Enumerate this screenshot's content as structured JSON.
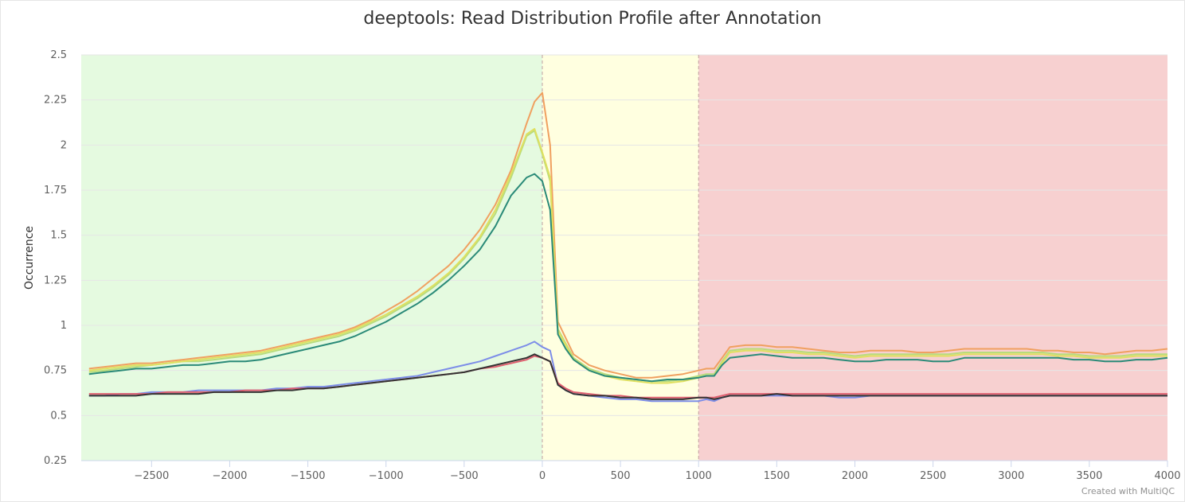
{
  "chart_data": {
    "type": "line",
    "title": "deeptools: Read Distribution Profile after Annotation",
    "xlabel": "",
    "ylabel": "Occurrence",
    "xlim": [
      -2950,
      4000
    ],
    "ylim": [
      0.25,
      2.5
    ],
    "x_ticks": [
      -2500,
      -2000,
      -1500,
      -1000,
      -500,
      0,
      500,
      1000,
      1500,
      2000,
      2500,
      3000,
      3500,
      4000
    ],
    "y_ticks": [
      0.25,
      0.5,
      0.75,
      1,
      1.25,
      1.5,
      1.75,
      2,
      2.25,
      2.5
    ],
    "y_tick_labels": [
      "0.25",
      "0.5",
      "0.75",
      "1",
      "1.25",
      "1.5",
      "1.75",
      "2",
      "2.25",
      "2.5"
    ],
    "grid": "horizontal",
    "legend": "none",
    "bands": [
      {
        "from": -2950,
        "to": 0,
        "color": "#e5fae0"
      },
      {
        "from": 0,
        "to": 1000,
        "color": "#ffffe0"
      },
      {
        "from": 1000,
        "to": 4000,
        "color": "#f7d0d0"
      }
    ],
    "plot_lines": [
      0,
      1000
    ],
    "series": [
      {
        "color": "#f0a060",
        "x": [
          -2900,
          -2800,
          -2700,
          -2600,
          -2500,
          -2400,
          -2300,
          -2200,
          -2100,
          -2000,
          -1900,
          -1800,
          -1700,
          -1600,
          -1500,
          -1400,
          -1300,
          -1200,
          -1100,
          -1000,
          -900,
          -800,
          -700,
          -600,
          -500,
          -400,
          -300,
          -200,
          -100,
          -50,
          0,
          50,
          100,
          150,
          200,
          300,
          400,
          500,
          600,
          700,
          800,
          900,
          1000,
          1050,
          1100,
          1150,
          1200,
          1300,
          1400,
          1500,
          1600,
          1700,
          1800,
          1900,
          2000,
          2100,
          2200,
          2300,
          2400,
          2500,
          2600,
          2700,
          2800,
          2900,
          3000,
          3100,
          3200,
          3300,
          3400,
          3500,
          3600,
          3700,
          3800,
          3900,
          4000
        ],
        "y": [
          0.76,
          0.77,
          0.78,
          0.79,
          0.79,
          0.8,
          0.81,
          0.82,
          0.83,
          0.84,
          0.85,
          0.86,
          0.88,
          0.9,
          0.92,
          0.94,
          0.96,
          0.99,
          1.03,
          1.08,
          1.13,
          1.19,
          1.26,
          1.33,
          1.42,
          1.53,
          1.67,
          1.86,
          2.12,
          2.24,
          2.29,
          2.0,
          1.02,
          0.93,
          0.84,
          0.78,
          0.75,
          0.73,
          0.71,
          0.71,
          0.72,
          0.73,
          0.75,
          0.76,
          0.76,
          0.82,
          0.88,
          0.89,
          0.89,
          0.88,
          0.88,
          0.87,
          0.86,
          0.85,
          0.85,
          0.86,
          0.86,
          0.86,
          0.85,
          0.85,
          0.86,
          0.87,
          0.87,
          0.87,
          0.87,
          0.87,
          0.86,
          0.86,
          0.85,
          0.85,
          0.84,
          0.85,
          0.86,
          0.86,
          0.87
        ]
      },
      {
        "color": "#b8dc7c",
        "x": [
          -2900,
          -2800,
          -2700,
          -2600,
          -2500,
          -2400,
          -2300,
          -2200,
          -2100,
          -2000,
          -1900,
          -1800,
          -1700,
          -1600,
          -1500,
          -1400,
          -1300,
          -1200,
          -1100,
          -1000,
          -900,
          -800,
          -700,
          -600,
          -500,
          -400,
          -300,
          -200,
          -100,
          -50,
          0,
          50,
          100,
          150,
          200,
          300,
          400,
          500,
          600,
          700,
          800,
          900,
          1000,
          1050,
          1100,
          1150,
          1200,
          1300,
          1400,
          1500,
          1600,
          1700,
          1800,
          1900,
          2000,
          2100,
          2200,
          2300,
          2400,
          2500,
          2600,
          2700,
          2800,
          2900,
          3000,
          3100,
          3200,
          3300,
          3400,
          3500,
          3600,
          3700,
          3800,
          3900,
          4000
        ],
        "y": [
          0.74,
          0.75,
          0.76,
          0.77,
          0.78,
          0.79,
          0.8,
          0.8,
          0.81,
          0.82,
          0.83,
          0.84,
          0.86,
          0.88,
          0.9,
          0.92,
          0.94,
          0.97,
          1.01,
          1.05,
          1.1,
          1.15,
          1.21,
          1.28,
          1.37,
          1.48,
          1.62,
          1.82,
          2.05,
          2.08,
          1.95,
          1.8,
          0.98,
          0.9,
          0.82,
          0.76,
          0.73,
          0.71,
          0.7,
          0.69,
          0.69,
          0.7,
          0.72,
          0.73,
          0.73,
          0.8,
          0.86,
          0.87,
          0.87,
          0.86,
          0.86,
          0.85,
          0.85,
          0.84,
          0.83,
          0.84,
          0.84,
          0.84,
          0.84,
          0.84,
          0.84,
          0.85,
          0.85,
          0.85,
          0.85,
          0.85,
          0.85,
          0.84,
          0.84,
          0.83,
          0.83,
          0.83,
          0.84,
          0.84,
          0.84
        ]
      },
      {
        "color": "#e0e060",
        "x": [
          -2900,
          -2800,
          -2700,
          -2600,
          -2500,
          -2400,
          -2300,
          -2200,
          -2100,
          -2000,
          -1900,
          -1800,
          -1700,
          -1600,
          -1500,
          -1400,
          -1300,
          -1200,
          -1100,
          -1000,
          -900,
          -800,
          -700,
          -600,
          -500,
          -400,
          -300,
          -200,
          -100,
          -50,
          0,
          50,
          100,
          150,
          200,
          300,
          400,
          500,
          600,
          700,
          800,
          900,
          1000,
          1050,
          1100,
          1150,
          1200,
          1300,
          1400,
          1500,
          1600,
          1700,
          1800,
          1900,
          2000,
          2100,
          2200,
          2300,
          2400,
          2500,
          2600,
          2700,
          2800,
          2900,
          3000,
          3100,
          3200,
          3300,
          3400,
          3500,
          3600,
          3700,
          3800,
          3900,
          4000
        ],
        "y": [
          0.75,
          0.76,
          0.77,
          0.78,
          0.78,
          0.79,
          0.8,
          0.81,
          0.82,
          0.83,
          0.84,
          0.85,
          0.87,
          0.89,
          0.91,
          0.93,
          0.95,
          0.98,
          1.02,
          1.06,
          1.11,
          1.16,
          1.22,
          1.29,
          1.38,
          1.49,
          1.64,
          1.84,
          2.06,
          2.09,
          1.96,
          1.82,
          0.97,
          0.89,
          0.81,
          0.75,
          0.72,
          0.7,
          0.69,
          0.68,
          0.68,
          0.69,
          0.71,
          0.72,
          0.72,
          0.79,
          0.85,
          0.86,
          0.86,
          0.85,
          0.85,
          0.84,
          0.84,
          0.83,
          0.82,
          0.83,
          0.83,
          0.83,
          0.83,
          0.83,
          0.83,
          0.84,
          0.84,
          0.84,
          0.84,
          0.84,
          0.84,
          0.83,
          0.83,
          0.82,
          0.82,
          0.82,
          0.83,
          0.83,
          0.83
        ]
      },
      {
        "color": "#2a8a78",
        "x": [
          -2900,
          -2800,
          -2700,
          -2600,
          -2500,
          -2400,
          -2300,
          -2200,
          -2100,
          -2000,
          -1900,
          -1800,
          -1700,
          -1600,
          -1500,
          -1400,
          -1300,
          -1200,
          -1100,
          -1000,
          -900,
          -800,
          -700,
          -600,
          -500,
          -400,
          -300,
          -200,
          -100,
          -50,
          0,
          50,
          100,
          150,
          200,
          300,
          400,
          500,
          600,
          700,
          800,
          900,
          1000,
          1050,
          1100,
          1150,
          1200,
          1300,
          1400,
          1500,
          1600,
          1700,
          1800,
          1900,
          2000,
          2100,
          2200,
          2300,
          2400,
          2500,
          2600,
          2700,
          2800,
          2900,
          3000,
          3100,
          3200,
          3300,
          3400,
          3500,
          3600,
          3700,
          3800,
          3900,
          4000
        ],
        "y": [
          0.73,
          0.74,
          0.75,
          0.76,
          0.76,
          0.77,
          0.78,
          0.78,
          0.79,
          0.8,
          0.8,
          0.81,
          0.83,
          0.85,
          0.87,
          0.89,
          0.91,
          0.94,
          0.98,
          1.02,
          1.07,
          1.12,
          1.18,
          1.25,
          1.33,
          1.42,
          1.55,
          1.72,
          1.82,
          1.84,
          1.8,
          1.64,
          0.95,
          0.87,
          0.81,
          0.75,
          0.72,
          0.71,
          0.7,
          0.69,
          0.7,
          0.7,
          0.71,
          0.72,
          0.72,
          0.78,
          0.82,
          0.83,
          0.84,
          0.83,
          0.82,
          0.82,
          0.82,
          0.81,
          0.8,
          0.8,
          0.81,
          0.81,
          0.81,
          0.8,
          0.8,
          0.82,
          0.82,
          0.82,
          0.82,
          0.82,
          0.82,
          0.82,
          0.81,
          0.81,
          0.8,
          0.8,
          0.81,
          0.81,
          0.82
        ]
      },
      {
        "color": "#7c8de8",
        "x": [
          -2900,
          -2800,
          -2700,
          -2600,
          -2500,
          -2400,
          -2300,
          -2200,
          -2100,
          -2000,
          -1900,
          -1800,
          -1700,
          -1600,
          -1500,
          -1400,
          -1300,
          -1200,
          -1100,
          -1000,
          -900,
          -800,
          -700,
          -600,
          -500,
          -400,
          -300,
          -200,
          -100,
          -50,
          0,
          50,
          100,
          150,
          200,
          300,
          400,
          500,
          600,
          700,
          800,
          900,
          1000,
          1050,
          1100,
          1150,
          1200,
          1300,
          1400,
          1500,
          1600,
          1700,
          1800,
          1900,
          2000,
          2100,
          2200,
          2300,
          2400,
          2500,
          2600,
          2700,
          2800,
          2900,
          3000,
          3100,
          3200,
          3300,
          3400,
          3500,
          3600,
          3700,
          3800,
          3900,
          4000
        ],
        "y": [
          0.61,
          0.61,
          0.62,
          0.62,
          0.63,
          0.63,
          0.63,
          0.64,
          0.64,
          0.64,
          0.64,
          0.64,
          0.65,
          0.65,
          0.66,
          0.66,
          0.67,
          0.68,
          0.69,
          0.7,
          0.71,
          0.72,
          0.74,
          0.76,
          0.78,
          0.8,
          0.83,
          0.86,
          0.89,
          0.91,
          0.88,
          0.86,
          0.67,
          0.64,
          0.62,
          0.61,
          0.6,
          0.59,
          0.59,
          0.58,
          0.58,
          0.58,
          0.58,
          0.59,
          0.58,
          0.6,
          0.61,
          0.61,
          0.61,
          0.61,
          0.61,
          0.61,
          0.61,
          0.6,
          0.6,
          0.61,
          0.61,
          0.61,
          0.61,
          0.61,
          0.61,
          0.61,
          0.61,
          0.61,
          0.61,
          0.61,
          0.61,
          0.61,
          0.61,
          0.61,
          0.61,
          0.61,
          0.61,
          0.61,
          0.61
        ]
      },
      {
        "color": "#e06070",
        "x": [
          -2900,
          -2800,
          -2700,
          -2600,
          -2500,
          -2400,
          -2300,
          -2200,
          -2100,
          -2000,
          -1900,
          -1800,
          -1700,
          -1600,
          -1500,
          -1400,
          -1300,
          -1200,
          -1100,
          -1000,
          -900,
          -800,
          -700,
          -600,
          -500,
          -400,
          -300,
          -200,
          -100,
          -50,
          0,
          50,
          100,
          150,
          200,
          300,
          400,
          500,
          600,
          700,
          800,
          900,
          1000,
          1050,
          1100,
          1150,
          1200,
          1300,
          1400,
          1500,
          1600,
          1700,
          1800,
          1900,
          2000,
          2100,
          2200,
          2300,
          2400,
          2500,
          2600,
          2700,
          2800,
          2900,
          3000,
          3100,
          3200,
          3300,
          3400,
          3500,
          3600,
          3700,
          3800,
          3900,
          4000
        ],
        "y": [
          0.62,
          0.62,
          0.62,
          0.62,
          0.62,
          0.63,
          0.63,
          0.63,
          0.63,
          0.63,
          0.64,
          0.64,
          0.64,
          0.65,
          0.65,
          0.65,
          0.66,
          0.67,
          0.68,
          0.69,
          0.7,
          0.71,
          0.72,
          0.73,
          0.74,
          0.76,
          0.77,
          0.79,
          0.81,
          0.83,
          0.82,
          0.8,
          0.68,
          0.65,
          0.63,
          0.62,
          0.61,
          0.61,
          0.6,
          0.6,
          0.6,
          0.6,
          0.6,
          0.6,
          0.6,
          0.61,
          0.62,
          0.62,
          0.62,
          0.62,
          0.62,
          0.62,
          0.62,
          0.62,
          0.62,
          0.62,
          0.62,
          0.62,
          0.62,
          0.62,
          0.62,
          0.62,
          0.62,
          0.62,
          0.62,
          0.62,
          0.62,
          0.62,
          0.62,
          0.62,
          0.62,
          0.62,
          0.62,
          0.62,
          0.62
        ]
      },
      {
        "color": "#333333",
        "x": [
          -2900,
          -2800,
          -2700,
          -2600,
          -2500,
          -2400,
          -2300,
          -2200,
          -2100,
          -2000,
          -1900,
          -1800,
          -1700,
          -1600,
          -1500,
          -1400,
          -1300,
          -1200,
          -1100,
          -1000,
          -900,
          -800,
          -700,
          -600,
          -500,
          -400,
          -300,
          -200,
          -100,
          -50,
          0,
          50,
          100,
          150,
          200,
          300,
          400,
          500,
          600,
          700,
          800,
          900,
          1000,
          1050,
          1100,
          1150,
          1200,
          1300,
          1400,
          1500,
          1600,
          1700,
          1800,
          1900,
          2000,
          2100,
          2200,
          2300,
          2400,
          2500,
          2600,
          2700,
          2800,
          2900,
          3000,
          3100,
          3200,
          3300,
          3400,
          3500,
          3600,
          3700,
          3800,
          3900,
          4000
        ],
        "y": [
          0.61,
          0.61,
          0.61,
          0.61,
          0.62,
          0.62,
          0.62,
          0.62,
          0.63,
          0.63,
          0.63,
          0.63,
          0.64,
          0.64,
          0.65,
          0.65,
          0.66,
          0.67,
          0.68,
          0.69,
          0.7,
          0.71,
          0.72,
          0.73,
          0.74,
          0.76,
          0.78,
          0.8,
          0.82,
          0.84,
          0.82,
          0.8,
          0.67,
          0.64,
          0.62,
          0.61,
          0.61,
          0.6,
          0.6,
          0.59,
          0.59,
          0.59,
          0.6,
          0.6,
          0.59,
          0.6,
          0.61,
          0.61,
          0.61,
          0.62,
          0.61,
          0.61,
          0.61,
          0.61,
          0.61,
          0.61,
          0.61,
          0.61,
          0.61,
          0.61,
          0.61,
          0.61,
          0.61,
          0.61,
          0.61,
          0.61,
          0.61,
          0.61,
          0.61,
          0.61,
          0.61,
          0.61,
          0.61,
          0.61,
          0.61
        ]
      }
    ]
  },
  "footer": {
    "credit": "Created with MultiQC"
  }
}
